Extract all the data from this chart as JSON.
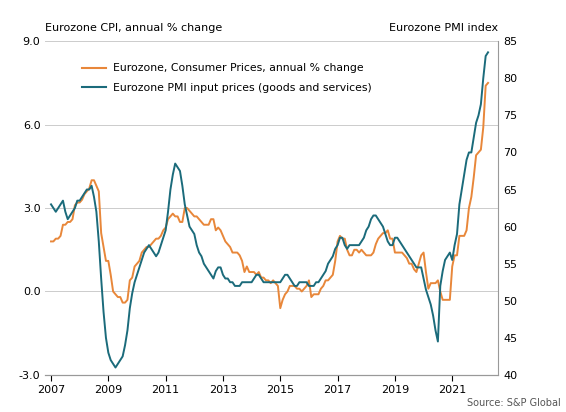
{
  "title_left": "Eurozone CPI, annual % change",
  "title_right": "Eurozone PMI index",
  "source": "Source: S&P Global",
  "legend_cpi": "Eurozone, Consumer Prices, annual % change",
  "legend_pmi": "Eurozone PMI input prices (goods and services)",
  "cpi_color": "#E8873A",
  "pmi_color": "#1B6B7B",
  "ylim_left": [
    -3.0,
    9.0
  ],
  "ylim_right": [
    40,
    85
  ],
  "yticks_left": [
    -3.0,
    0.0,
    3.0,
    6.0,
    9.0
  ],
  "yticks_right": [
    40,
    45,
    50,
    55,
    60,
    65,
    70,
    75,
    80,
    85
  ],
  "xticks": [
    2007,
    2009,
    2011,
    2013,
    2015,
    2017,
    2019,
    2021
  ],
  "xlim": [
    2006.8,
    2022.6
  ],
  "cpi_data": {
    "dates": [
      2007.0,
      2007.083,
      2007.167,
      2007.25,
      2007.333,
      2007.417,
      2007.5,
      2007.583,
      2007.667,
      2007.75,
      2007.833,
      2007.917,
      2008.0,
      2008.083,
      2008.167,
      2008.25,
      2008.333,
      2008.417,
      2008.5,
      2008.583,
      2008.667,
      2008.75,
      2008.833,
      2008.917,
      2009.0,
      2009.083,
      2009.167,
      2009.25,
      2009.333,
      2009.417,
      2009.5,
      2009.583,
      2009.667,
      2009.75,
      2009.833,
      2009.917,
      2010.0,
      2010.083,
      2010.167,
      2010.25,
      2010.333,
      2010.417,
      2010.5,
      2010.583,
      2010.667,
      2010.75,
      2010.833,
      2010.917,
      2011.0,
      2011.083,
      2011.167,
      2011.25,
      2011.333,
      2011.417,
      2011.5,
      2011.583,
      2011.667,
      2011.75,
      2011.833,
      2011.917,
      2012.0,
      2012.083,
      2012.167,
      2012.25,
      2012.333,
      2012.417,
      2012.5,
      2012.583,
      2012.667,
      2012.75,
      2012.833,
      2012.917,
      2013.0,
      2013.083,
      2013.167,
      2013.25,
      2013.333,
      2013.417,
      2013.5,
      2013.583,
      2013.667,
      2013.75,
      2013.833,
      2013.917,
      2014.0,
      2014.083,
      2014.167,
      2014.25,
      2014.333,
      2014.417,
      2014.5,
      2014.583,
      2014.667,
      2014.75,
      2014.833,
      2014.917,
      2015.0,
      2015.083,
      2015.167,
      2015.25,
      2015.333,
      2015.417,
      2015.5,
      2015.583,
      2015.667,
      2015.75,
      2015.833,
      2015.917,
      2016.0,
      2016.083,
      2016.167,
      2016.25,
      2016.333,
      2016.417,
      2016.5,
      2016.583,
      2016.667,
      2016.75,
      2016.833,
      2016.917,
      2017.0,
      2017.083,
      2017.167,
      2017.25,
      2017.333,
      2017.417,
      2017.5,
      2017.583,
      2017.667,
      2017.75,
      2017.833,
      2017.917,
      2018.0,
      2018.083,
      2018.167,
      2018.25,
      2018.333,
      2018.417,
      2018.5,
      2018.583,
      2018.667,
      2018.75,
      2018.833,
      2018.917,
      2019.0,
      2019.083,
      2019.167,
      2019.25,
      2019.333,
      2019.417,
      2019.5,
      2019.583,
      2019.667,
      2019.75,
      2019.833,
      2019.917,
      2020.0,
      2020.083,
      2020.167,
      2020.25,
      2020.333,
      2020.417,
      2020.5,
      2020.583,
      2020.667,
      2020.75,
      2020.833,
      2020.917,
      2021.0,
      2021.083,
      2021.167,
      2021.25,
      2021.333,
      2021.417,
      2021.5,
      2021.583,
      2021.667,
      2021.75,
      2021.833,
      2021.917,
      2022.0,
      2022.083,
      2022.167,
      2022.25
    ],
    "values": [
      1.8,
      1.8,
      1.9,
      1.9,
      2.0,
      2.4,
      2.4,
      2.5,
      2.5,
      2.6,
      3.1,
      3.2,
      3.2,
      3.3,
      3.5,
      3.6,
      3.7,
      4.0,
      4.0,
      3.8,
      3.6,
      2.1,
      1.6,
      1.1,
      1.1,
      0.6,
      0.0,
      -0.1,
      -0.2,
      -0.2,
      -0.4,
      -0.4,
      -0.3,
      0.4,
      0.5,
      0.9,
      1.0,
      1.1,
      1.4,
      1.5,
      1.6,
      1.6,
      1.7,
      1.8,
      1.9,
      1.9,
      2.0,
      2.2,
      2.3,
      2.6,
      2.7,
      2.8,
      2.7,
      2.7,
      2.5,
      2.5,
      3.0,
      3.0,
      2.9,
      2.8,
      2.7,
      2.7,
      2.6,
      2.5,
      2.4,
      2.4,
      2.4,
      2.6,
      2.6,
      2.2,
      2.3,
      2.2,
      2.0,
      1.8,
      1.7,
      1.6,
      1.4,
      1.4,
      1.4,
      1.3,
      1.1,
      0.7,
      0.9,
      0.7,
      0.7,
      0.7,
      0.6,
      0.7,
      0.5,
      0.5,
      0.4,
      0.4,
      0.3,
      0.4,
      0.3,
      0.2,
      -0.6,
      -0.3,
      -0.1,
      0.0,
      0.2,
      0.2,
      0.2,
      0.1,
      0.1,
      0.0,
      0.1,
      0.2,
      0.4,
      -0.2,
      -0.1,
      -0.1,
      -0.1,
      0.1,
      0.2,
      0.4,
      0.4,
      0.5,
      0.6,
      1.1,
      1.8,
      2.0,
      1.9,
      1.9,
      1.5,
      1.3,
      1.3,
      1.5,
      1.5,
      1.4,
      1.5,
      1.4,
      1.3,
      1.3,
      1.3,
      1.4,
      1.7,
      1.9,
      2.0,
      2.1,
      2.1,
      2.2,
      1.9,
      1.9,
      1.4,
      1.4,
      1.4,
      1.4,
      1.3,
      1.2,
      1.0,
      1.0,
      0.8,
      0.7,
      1.0,
      1.3,
      1.4,
      0.7,
      0.1,
      0.3,
      0.3,
      0.3,
      0.4,
      0.0,
      -0.3,
      -0.3,
      -0.3,
      -0.3,
      0.9,
      1.3,
      1.3,
      2.0,
      2.0,
      2.0,
      2.2,
      3.0,
      3.4,
      4.1,
      4.9,
      5.0,
      5.1,
      5.9,
      7.4,
      7.5
    ]
  },
  "pmi_data": {
    "dates": [
      2007.0,
      2007.083,
      2007.167,
      2007.25,
      2007.333,
      2007.417,
      2007.5,
      2007.583,
      2007.667,
      2007.75,
      2007.833,
      2007.917,
      2008.0,
      2008.083,
      2008.167,
      2008.25,
      2008.333,
      2008.417,
      2008.5,
      2008.583,
      2008.667,
      2008.75,
      2008.833,
      2008.917,
      2009.0,
      2009.083,
      2009.167,
      2009.25,
      2009.333,
      2009.417,
      2009.5,
      2009.583,
      2009.667,
      2009.75,
      2009.833,
      2009.917,
      2010.0,
      2010.083,
      2010.167,
      2010.25,
      2010.333,
      2010.417,
      2010.5,
      2010.583,
      2010.667,
      2010.75,
      2010.833,
      2010.917,
      2011.0,
      2011.083,
      2011.167,
      2011.25,
      2011.333,
      2011.417,
      2011.5,
      2011.583,
      2011.667,
      2011.75,
      2011.833,
      2011.917,
      2012.0,
      2012.083,
      2012.167,
      2012.25,
      2012.333,
      2012.417,
      2012.5,
      2012.583,
      2012.667,
      2012.75,
      2012.833,
      2012.917,
      2013.0,
      2013.083,
      2013.167,
      2013.25,
      2013.333,
      2013.417,
      2013.5,
      2013.583,
      2013.667,
      2013.75,
      2013.833,
      2013.917,
      2014.0,
      2014.083,
      2014.167,
      2014.25,
      2014.333,
      2014.417,
      2014.5,
      2014.583,
      2014.667,
      2014.75,
      2014.833,
      2014.917,
      2015.0,
      2015.083,
      2015.167,
      2015.25,
      2015.333,
      2015.417,
      2015.5,
      2015.583,
      2015.667,
      2015.75,
      2015.833,
      2015.917,
      2016.0,
      2016.083,
      2016.167,
      2016.25,
      2016.333,
      2016.417,
      2016.5,
      2016.583,
      2016.667,
      2016.75,
      2016.833,
      2016.917,
      2017.0,
      2017.083,
      2017.167,
      2017.25,
      2017.333,
      2017.417,
      2017.5,
      2017.583,
      2017.667,
      2017.75,
      2017.833,
      2017.917,
      2018.0,
      2018.083,
      2018.167,
      2018.25,
      2018.333,
      2018.417,
      2018.5,
      2018.583,
      2018.667,
      2018.75,
      2018.833,
      2018.917,
      2019.0,
      2019.083,
      2019.167,
      2019.25,
      2019.333,
      2019.417,
      2019.5,
      2019.583,
      2019.667,
      2019.75,
      2019.833,
      2019.917,
      2020.0,
      2020.083,
      2020.167,
      2020.25,
      2020.333,
      2020.417,
      2020.5,
      2020.583,
      2020.667,
      2020.75,
      2020.833,
      2020.917,
      2021.0,
      2021.083,
      2021.167,
      2021.25,
      2021.333,
      2021.417,
      2021.5,
      2021.583,
      2021.667,
      2021.75,
      2021.833,
      2021.917,
      2022.0,
      2022.083,
      2022.167,
      2022.25
    ],
    "values": [
      63.0,
      62.5,
      62.0,
      62.5,
      63.0,
      63.5,
      62.0,
      61.0,
      61.5,
      62.0,
      62.5,
      63.5,
      63.5,
      64.0,
      64.5,
      65.0,
      65.0,
      65.5,
      64.0,
      62.0,
      58.0,
      53.0,
      48.5,
      45.0,
      43.0,
      42.0,
      41.5,
      41.0,
      41.5,
      42.0,
      42.5,
      44.0,
      46.0,
      49.0,
      51.0,
      52.5,
      53.5,
      54.5,
      55.5,
      56.5,
      57.0,
      57.5,
      57.0,
      56.5,
      56.0,
      56.5,
      57.5,
      58.5,
      59.5,
      62.0,
      65.0,
      67.0,
      68.5,
      68.0,
      67.5,
      65.5,
      63.0,
      61.5,
      60.0,
      59.5,
      59.0,
      57.5,
      56.5,
      56.0,
      55.0,
      54.5,
      54.0,
      53.5,
      53.0,
      54.0,
      54.5,
      54.5,
      53.5,
      53.0,
      53.0,
      52.5,
      52.5,
      52.0,
      52.0,
      52.0,
      52.5,
      52.5,
      52.5,
      52.5,
      52.5,
      53.0,
      53.5,
      53.5,
      53.0,
      52.5,
      52.5,
      52.5,
      52.5,
      52.5,
      52.5,
      52.5,
      52.5,
      53.0,
      53.5,
      53.5,
      53.0,
      52.5,
      52.0,
      52.0,
      52.5,
      52.5,
      52.5,
      52.5,
      52.0,
      52.0,
      52.0,
      52.5,
      52.5,
      53.0,
      53.5,
      54.0,
      55.0,
      55.5,
      56.0,
      57.0,
      57.5,
      58.5,
      58.5,
      57.5,
      57.0,
      57.5,
      57.5,
      57.5,
      57.5,
      57.5,
      58.0,
      58.5,
      59.5,
      60.0,
      61.0,
      61.5,
      61.5,
      61.0,
      60.5,
      60.0,
      59.0,
      58.0,
      57.5,
      57.5,
      58.5,
      58.5,
      58.0,
      57.5,
      57.0,
      56.5,
      56.0,
      55.5,
      55.0,
      54.5,
      54.5,
      54.5,
      53.0,
      51.5,
      50.5,
      49.5,
      48.0,
      46.0,
      44.5,
      52.0,
      54.0,
      55.5,
      56.0,
      56.5,
      55.5,
      57.5,
      59.0,
      63.0,
      65.0,
      67.0,
      69.0,
      70.0,
      70.0,
      72.0,
      74.0,
      75.0,
      76.5,
      80.0,
      83.0,
      83.5
    ]
  }
}
